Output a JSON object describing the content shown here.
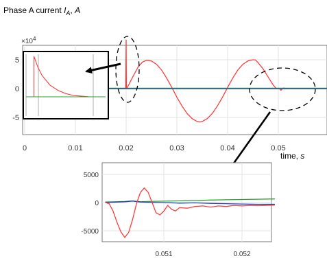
{
  "figure": {
    "title_main": "Phase A current ",
    "title_symbol": "I",
    "title_subscript": "A",
    "title_unit_sep": ", ",
    "title_unit": "A",
    "time_label_text": "time, ",
    "time_label_unit": "s"
  },
  "chart_data": [
    {
      "type": "line",
      "id": "main",
      "x_ticks": [
        "0",
        "0.01",
        "0.02",
        "0.03",
        "0.04",
        "0.05"
      ],
      "y_ticks": [
        "5",
        "0",
        "-5"
      ],
      "y_exponent": "×10",
      "y_exponent_power": "4",
      "xlim": [
        0,
        0.06
      ],
      "ylim": [
        -7,
        7.5
      ],
      "y_scale": 10000,
      "grid": true,
      "series": [
        {
          "color": "#ff3b3b",
          "x": [
            0.0,
            0.0199,
            0.02,
            0.02005,
            0.0201,
            0.0206,
            0.0214,
            0.0224,
            0.0232,
            0.024,
            0.025,
            0.026,
            0.027,
            0.028,
            0.029,
            0.03,
            0.031,
            0.032,
            0.033,
            0.034,
            0.0345,
            0.035,
            0.036,
            0.037,
            0.038,
            0.039,
            0.04,
            0.041,
            0.042,
            0.043,
            0.044,
            0.045,
            0.0455,
            0.046,
            0.047,
            0.048,
            0.049,
            0.0495,
            0.0498,
            0.0502,
            0.0505,
            0.051,
            0.052,
            0.06
          ],
          "y": [
            0,
            0,
            8.5,
            0,
            0,
            0.8,
            2.2,
            3.8,
            4.6,
            4.9,
            4.8,
            4.2,
            3.2,
            1.8,
            0.2,
            -1.5,
            -3.0,
            -4.3,
            -5.2,
            -5.7,
            -5.8,
            -5.7,
            -5.2,
            -4.3,
            -3.0,
            -1.5,
            0.2,
            1.8,
            3.2,
            4.2,
            4.8,
            5.0,
            4.95,
            4.5,
            3.4,
            2.0,
            0.6,
            0.1,
            0,
            0,
            -0.3,
            0.1,
            -0.05,
            0
          ]
        },
        {
          "color": "#2ca02c",
          "x": [
            0.0,
            0.06
          ],
          "y": [
            0.08,
            0.08
          ]
        },
        {
          "color": "#1f3fbf",
          "x": [
            0.0,
            0.06
          ],
          "y": [
            -0.05,
            -0.05
          ]
        }
      ]
    },
    {
      "type": "line",
      "id": "zoom",
      "x_ticks": [
        "0.051",
        "0.052"
      ],
      "x_tick_values": [
        0.051,
        0.052
      ],
      "y_ticks": [
        "5000",
        "0",
        "-5000"
      ],
      "y_tick_values": [
        5000,
        0,
        -5000
      ],
      "xlim": [
        0.05025,
        0.05242
      ],
      "ylim": [
        -7000,
        7500
      ],
      "grid": true,
      "series": [
        {
          "color": "#ff3b3b",
          "x": [
            0.05025,
            0.0503,
            0.05035,
            0.0504,
            0.05045,
            0.0505,
            0.05055,
            0.0506,
            0.05065,
            0.0507,
            0.05075,
            0.0508,
            0.05085,
            0.0509,
            0.05095,
            0.051,
            0.05105,
            0.0511,
            0.05115,
            0.0512,
            0.0513,
            0.0514,
            0.0515,
            0.0516,
            0.0517,
            0.0518,
            0.0519,
            0.052,
            0.0521,
            0.0522,
            0.05242
          ],
          "y": [
            0,
            -200,
            -1500,
            -3500,
            -5200,
            -6200,
            -5300,
            -3000,
            -200,
            1800,
            2600,
            1800,
            0,
            -1800,
            -2200,
            -1500,
            -500,
            -1200,
            -1500,
            -900,
            -1000,
            -700,
            -600,
            -800,
            -600,
            -700,
            -500,
            -600,
            -500,
            -550,
            -450
          ]
        },
        {
          "color": "#2ca02c",
          "x": [
            0.05025,
            0.0505,
            0.0506,
            0.0507,
            0.0508,
            0.051,
            0.0512,
            0.0514,
            0.0516,
            0.0518,
            0.052,
            0.0522,
            0.05242
          ],
          "y": [
            100,
            200,
            300,
            150,
            200,
            250,
            300,
            350,
            450,
            500,
            550,
            600,
            650
          ]
        },
        {
          "color": "#1f3fbf",
          "x": [
            0.05025,
            0.0505,
            0.0506,
            0.0507,
            0.0508,
            0.051,
            0.0512,
            0.0514,
            0.0516,
            0.0518,
            0.052,
            0.0522,
            0.05242
          ],
          "y": [
            0,
            150,
            250,
            100,
            50,
            0,
            -100,
            -50,
            -150,
            -200,
            -250,
            -300,
            -300
          ]
        }
      ]
    },
    {
      "type": "line",
      "id": "inset",
      "xlim": [
        0,
        1
      ],
      "ylim": [
        -0.5,
        1
      ],
      "grid": false,
      "series": [
        {
          "color": "#ff3b3b",
          "x": [
            0.1,
            0.1,
            0.15,
            0.2,
            0.3,
            0.4,
            0.5,
            0.6,
            0.7,
            0.8,
            0.9,
            1.0
          ],
          "y": [
            0.0,
            0.62,
            0.45,
            0.33,
            0.18,
            0.1,
            0.05,
            0.02,
            0.01,
            0.0,
            0.0,
            0.0
          ]
        },
        {
          "color": "#2ca02c",
          "x": [
            0.0,
            1.0
          ],
          "y": [
            0.0,
            0.0
          ]
        }
      ]
    }
  ]
}
